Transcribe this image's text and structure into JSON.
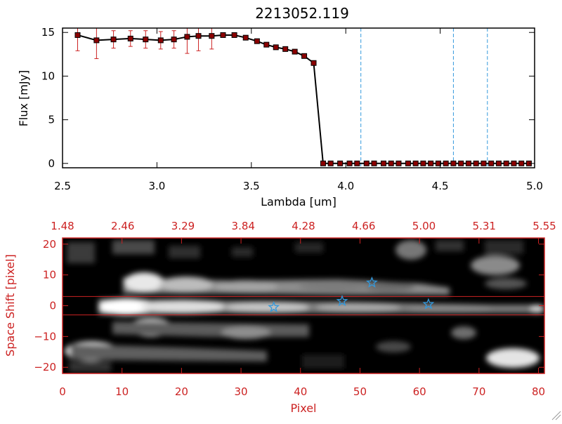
{
  "chart_data": [
    {
      "type": "line",
      "title": "2213052.119",
      "xlabel": "Lambda [um]",
      "ylabel": "Flux [mJy]",
      "xlim": [
        2.5,
        5.0
      ],
      "ylim": [
        -0.5,
        15.5
      ],
      "x_ticks": [
        2.5,
        3.0,
        3.5,
        4.0,
        4.5,
        5.0
      ],
      "x_tick_labels": [
        "2.5",
        "3.0",
        "3.5",
        "4.0",
        "4.5",
        "5.0"
      ],
      "y_ticks": [
        0,
        5,
        10,
        15
      ],
      "y_tick_labels": [
        "0",
        "5",
        "10",
        "15"
      ],
      "series": [
        {
          "name": "flux",
          "x": [
            2.58,
            2.68,
            2.77,
            2.86,
            2.94,
            3.02,
            3.09,
            3.16,
            3.22,
            3.29,
            3.35,
            3.41,
            3.47,
            3.53,
            3.58,
            3.63,
            3.68,
            3.73,
            3.78,
            3.83,
            3.88,
            3.92,
            3.97,
            4.02,
            4.06,
            4.11,
            4.15,
            4.2,
            4.24,
            4.28,
            4.33,
            4.37,
            4.41,
            4.45,
            4.49,
            4.53,
            4.57,
            4.61,
            4.65,
            4.69,
            4.73,
            4.77,
            4.81,
            4.85,
            4.89,
            4.93,
            4.97
          ],
          "y": [
            14.7,
            14.1,
            14.2,
            14.3,
            14.2,
            14.1,
            14.2,
            14.5,
            14.6,
            14.6,
            14.7,
            14.7,
            14.4,
            14.0,
            13.6,
            13.3,
            13.1,
            12.8,
            12.3,
            11.5,
            0,
            0,
            0,
            0,
            0,
            0,
            0,
            0,
            0,
            0,
            0,
            0,
            0,
            0,
            0,
            0,
            0,
            0,
            0,
            0,
            0,
            0,
            0,
            0,
            0,
            0,
            0
          ],
          "yerr": [
            1.8,
            2.1,
            1.0,
            0.9,
            1.0,
            1.0,
            1.0,
            1.9,
            1.7,
            1.5,
            0,
            0,
            0,
            0,
            0,
            0,
            0,
            0,
            0,
            0,
            0,
            0,
            0,
            0,
            0,
            0,
            0,
            0,
            0,
            0,
            0,
            0,
            0,
            0,
            0,
            0,
            0,
            0,
            0,
            0,
            0,
            0,
            0,
            0,
            0,
            0,
            0
          ]
        }
      ],
      "vlines": [
        4.08,
        4.57,
        4.75
      ],
      "colors": {
        "line": "#000000",
        "marker": "#8b0000",
        "errorbar": "#cc2222",
        "vline": "#3399dd"
      }
    },
    {
      "type": "heatmap",
      "xlabel": "Pixel",
      "ylabel": "Space Shift [pixel]",
      "xlim": [
        0,
        81
      ],
      "ylim": [
        -22,
        22
      ],
      "x_ticks": [
        0,
        10,
        20,
        30,
        40,
        50,
        60,
        70,
        80
      ],
      "x_tick_labels": [
        "0",
        "10",
        "20",
        "30",
        "40",
        "50",
        "60",
        "70",
        "80"
      ],
      "y_ticks": [
        -20,
        -10,
        0,
        10,
        20
      ],
      "y_tick_labels": [
        "−20",
        "−10",
        "0",
        "10",
        "20"
      ],
      "top_axis_labels": [
        "1.48",
        "2.46",
        "3.29",
        "3.84",
        "4.28",
        "4.66",
        "5.00",
        "5.31",
        "5.55"
      ],
      "hlines": [
        3,
        -3
      ],
      "stars": [
        {
          "x": 35.5,
          "y": -0.5
        },
        {
          "x": 47,
          "y": 1.5
        },
        {
          "x": 52,
          "y": 7.5
        },
        {
          "x": 61.5,
          "y": 0.5
        }
      ],
      "colors": {
        "axis": "#cc2222",
        "star": "#3399dd",
        "hline": "#cc2222"
      }
    }
  ]
}
